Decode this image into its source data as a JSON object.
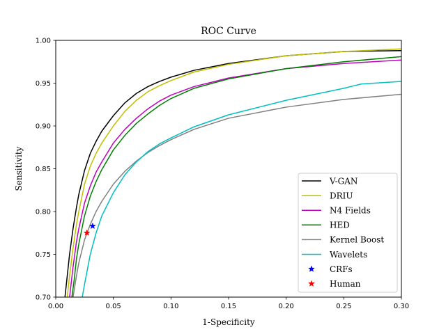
{
  "chart_data": {
    "type": "line",
    "title": "ROC Curve",
    "xlabel": "1-Specificity",
    "ylabel": "Sensitivity",
    "xlim": [
      0.0,
      0.3
    ],
    "ylim": [
      0.7,
      1.0
    ],
    "xticks": [
      "0.00",
      "0.05",
      "0.10",
      "0.15",
      "0.20",
      "0.25",
      "0.30"
    ],
    "yticks": [
      "0.70",
      "0.75",
      "0.80",
      "0.85",
      "0.90",
      "0.95",
      "1.00"
    ],
    "grid": false,
    "legend_position": "lower-right",
    "series": [
      {
        "name": "V-GAN",
        "type": "line",
        "color": "#000000",
        "x": [
          0.008,
          0.01,
          0.012,
          0.015,
          0.018,
          0.02,
          0.025,
          0.03,
          0.035,
          0.04,
          0.05,
          0.06,
          0.07,
          0.08,
          0.09,
          0.1,
          0.12,
          0.15,
          0.2,
          0.25,
          0.3
        ],
        "y": [
          0.7,
          0.725,
          0.75,
          0.78,
          0.805,
          0.82,
          0.848,
          0.868,
          0.882,
          0.894,
          0.912,
          0.927,
          0.938,
          0.946,
          0.952,
          0.957,
          0.965,
          0.973,
          0.982,
          0.987,
          0.988
        ]
      },
      {
        "name": "DRIU",
        "type": "line",
        "color": "#bfbf00",
        "x": [
          0.01,
          0.012,
          0.015,
          0.018,
          0.02,
          0.025,
          0.03,
          0.035,
          0.04,
          0.05,
          0.06,
          0.07,
          0.08,
          0.09,
          0.1,
          0.12,
          0.15,
          0.2,
          0.25,
          0.3
        ],
        "y": [
          0.7,
          0.725,
          0.757,
          0.785,
          0.8,
          0.832,
          0.853,
          0.868,
          0.88,
          0.9,
          0.917,
          0.93,
          0.94,
          0.947,
          0.953,
          0.963,
          0.972,
          0.982,
          0.987,
          0.99
        ]
      },
      {
        "name": "N4 Fields",
        "type": "line",
        "color": "#bf00bf",
        "x": [
          0.012,
          0.015,
          0.018,
          0.02,
          0.025,
          0.03,
          0.035,
          0.04,
          0.05,
          0.06,
          0.07,
          0.08,
          0.09,
          0.1,
          0.12,
          0.15,
          0.2,
          0.25,
          0.3
        ],
        "y": [
          0.7,
          0.735,
          0.765,
          0.78,
          0.81,
          0.83,
          0.846,
          0.858,
          0.88,
          0.896,
          0.909,
          0.92,
          0.929,
          0.936,
          0.946,
          0.956,
          0.967,
          0.973,
          0.977
        ]
      },
      {
        "name": "HED",
        "type": "line",
        "color": "#008000",
        "x": [
          0.014,
          0.016,
          0.018,
          0.02,
          0.025,
          0.03,
          0.035,
          0.04,
          0.05,
          0.06,
          0.07,
          0.08,
          0.09,
          0.1,
          0.12,
          0.15,
          0.2,
          0.25,
          0.3
        ],
        "y": [
          0.7,
          0.72,
          0.745,
          0.762,
          0.795,
          0.818,
          0.835,
          0.849,
          0.872,
          0.889,
          0.903,
          0.914,
          0.924,
          0.932,
          0.944,
          0.955,
          0.967,
          0.975,
          0.981
        ]
      },
      {
        "name": "Kernel Boost",
        "type": "line",
        "color": "#808080",
        "x": [
          0.015,
          0.018,
          0.02,
          0.025,
          0.03,
          0.035,
          0.04,
          0.05,
          0.06,
          0.07,
          0.08,
          0.09,
          0.1,
          0.12,
          0.15,
          0.2,
          0.25,
          0.3
        ],
        "y": [
          0.7,
          0.725,
          0.74,
          0.767,
          0.785,
          0.8,
          0.812,
          0.832,
          0.847,
          0.859,
          0.869,
          0.877,
          0.884,
          0.896,
          0.909,
          0.922,
          0.931,
          0.937
        ]
      },
      {
        "name": "Wavelets",
        "type": "line",
        "color": "#00bfbf",
        "x": [
          0.023,
          0.025,
          0.03,
          0.035,
          0.04,
          0.05,
          0.06,
          0.07,
          0.08,
          0.09,
          0.1,
          0.12,
          0.15,
          0.2,
          0.25,
          0.265,
          0.3
        ],
        "y": [
          0.7,
          0.715,
          0.75,
          0.775,
          0.795,
          0.822,
          0.843,
          0.858,
          0.87,
          0.879,
          0.886,
          0.899,
          0.913,
          0.93,
          0.944,
          0.949,
          0.952
        ]
      },
      {
        "name": "CRFs",
        "type": "scatter",
        "color": "#0000ff",
        "x": [
          0.032
        ],
        "y": [
          0.783
        ]
      },
      {
        "name": "Human",
        "type": "scatter",
        "color": "#ff0000",
        "x": [
          0.027
        ],
        "y": [
          0.775
        ]
      }
    ]
  }
}
